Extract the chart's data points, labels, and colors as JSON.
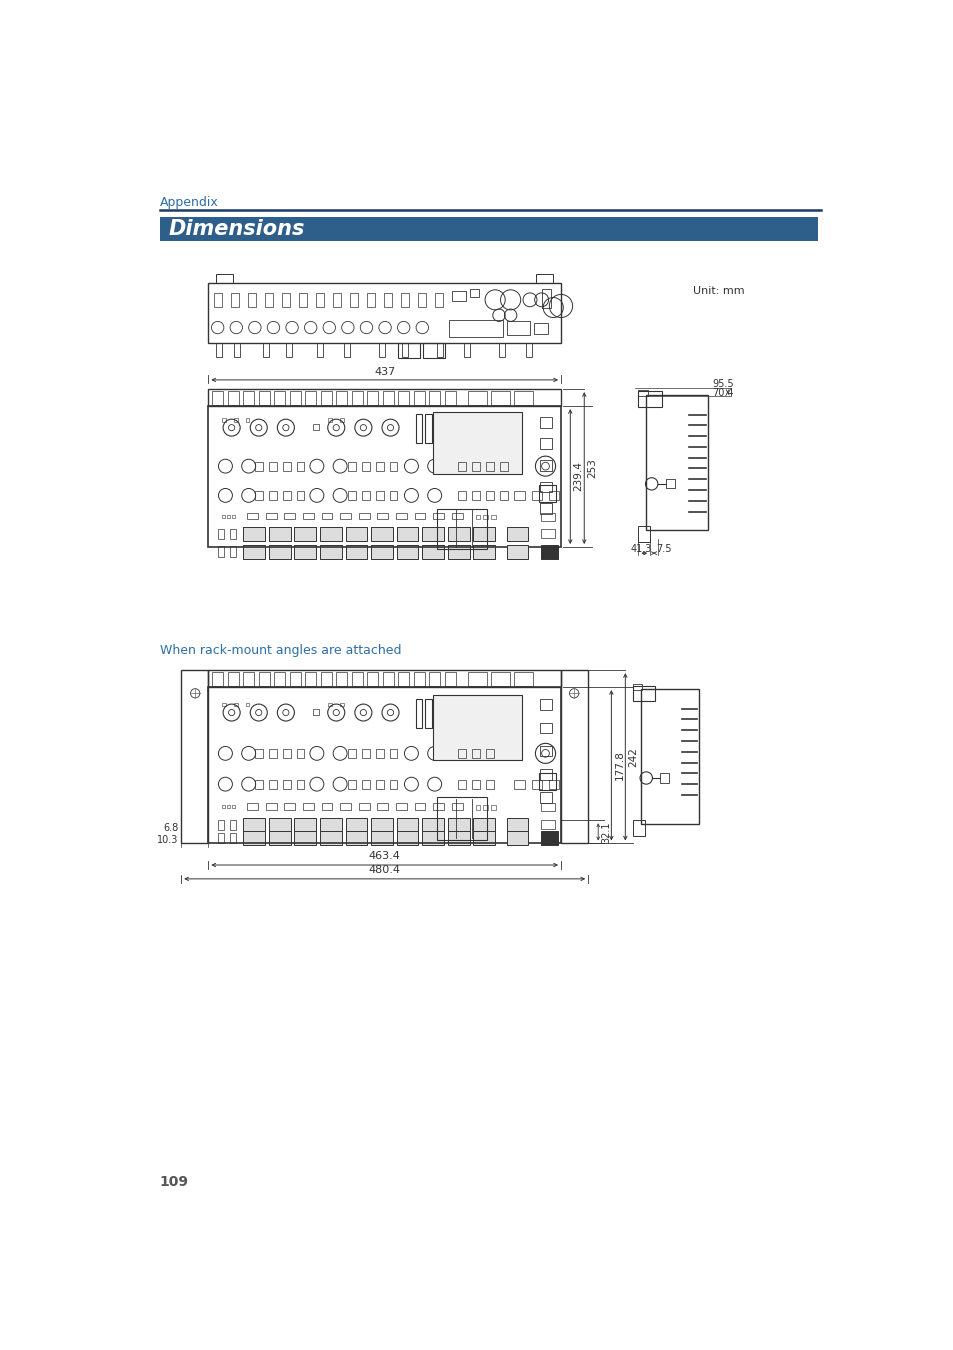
{
  "page_bg": "#ffffff",
  "appendix_text": "Appendix",
  "appendix_color": "#2e6ea6",
  "appendix_line_color": "#1a3a6b",
  "section_bg": "#2e5f8a",
  "section_text": "Dimensions",
  "section_text_color": "#ffffff",
  "unit_text": "Unit: mm",
  "when_rack_text": "When rack-mount angles are attached",
  "when_rack_color": "#2e6ea6",
  "page_number": "109",
  "page_number_color": "#555555",
  "dim_437": "437",
  "dim_253": "253",
  "dim_2394": "239.4",
  "dim_955": "95.5",
  "dim_704": "70.4",
  "dim_413": "41.3",
  "dim_75": "7.5",
  "dim_4634": "463.4",
  "dim_4804": "480.4",
  "dim_1778": "177.8",
  "dim_242": "242",
  "dim_321": "32.1",
  "dim_68": "6.8",
  "dim_103": "10.3",
  "lc": "#333333",
  "lc_light": "#888888"
}
